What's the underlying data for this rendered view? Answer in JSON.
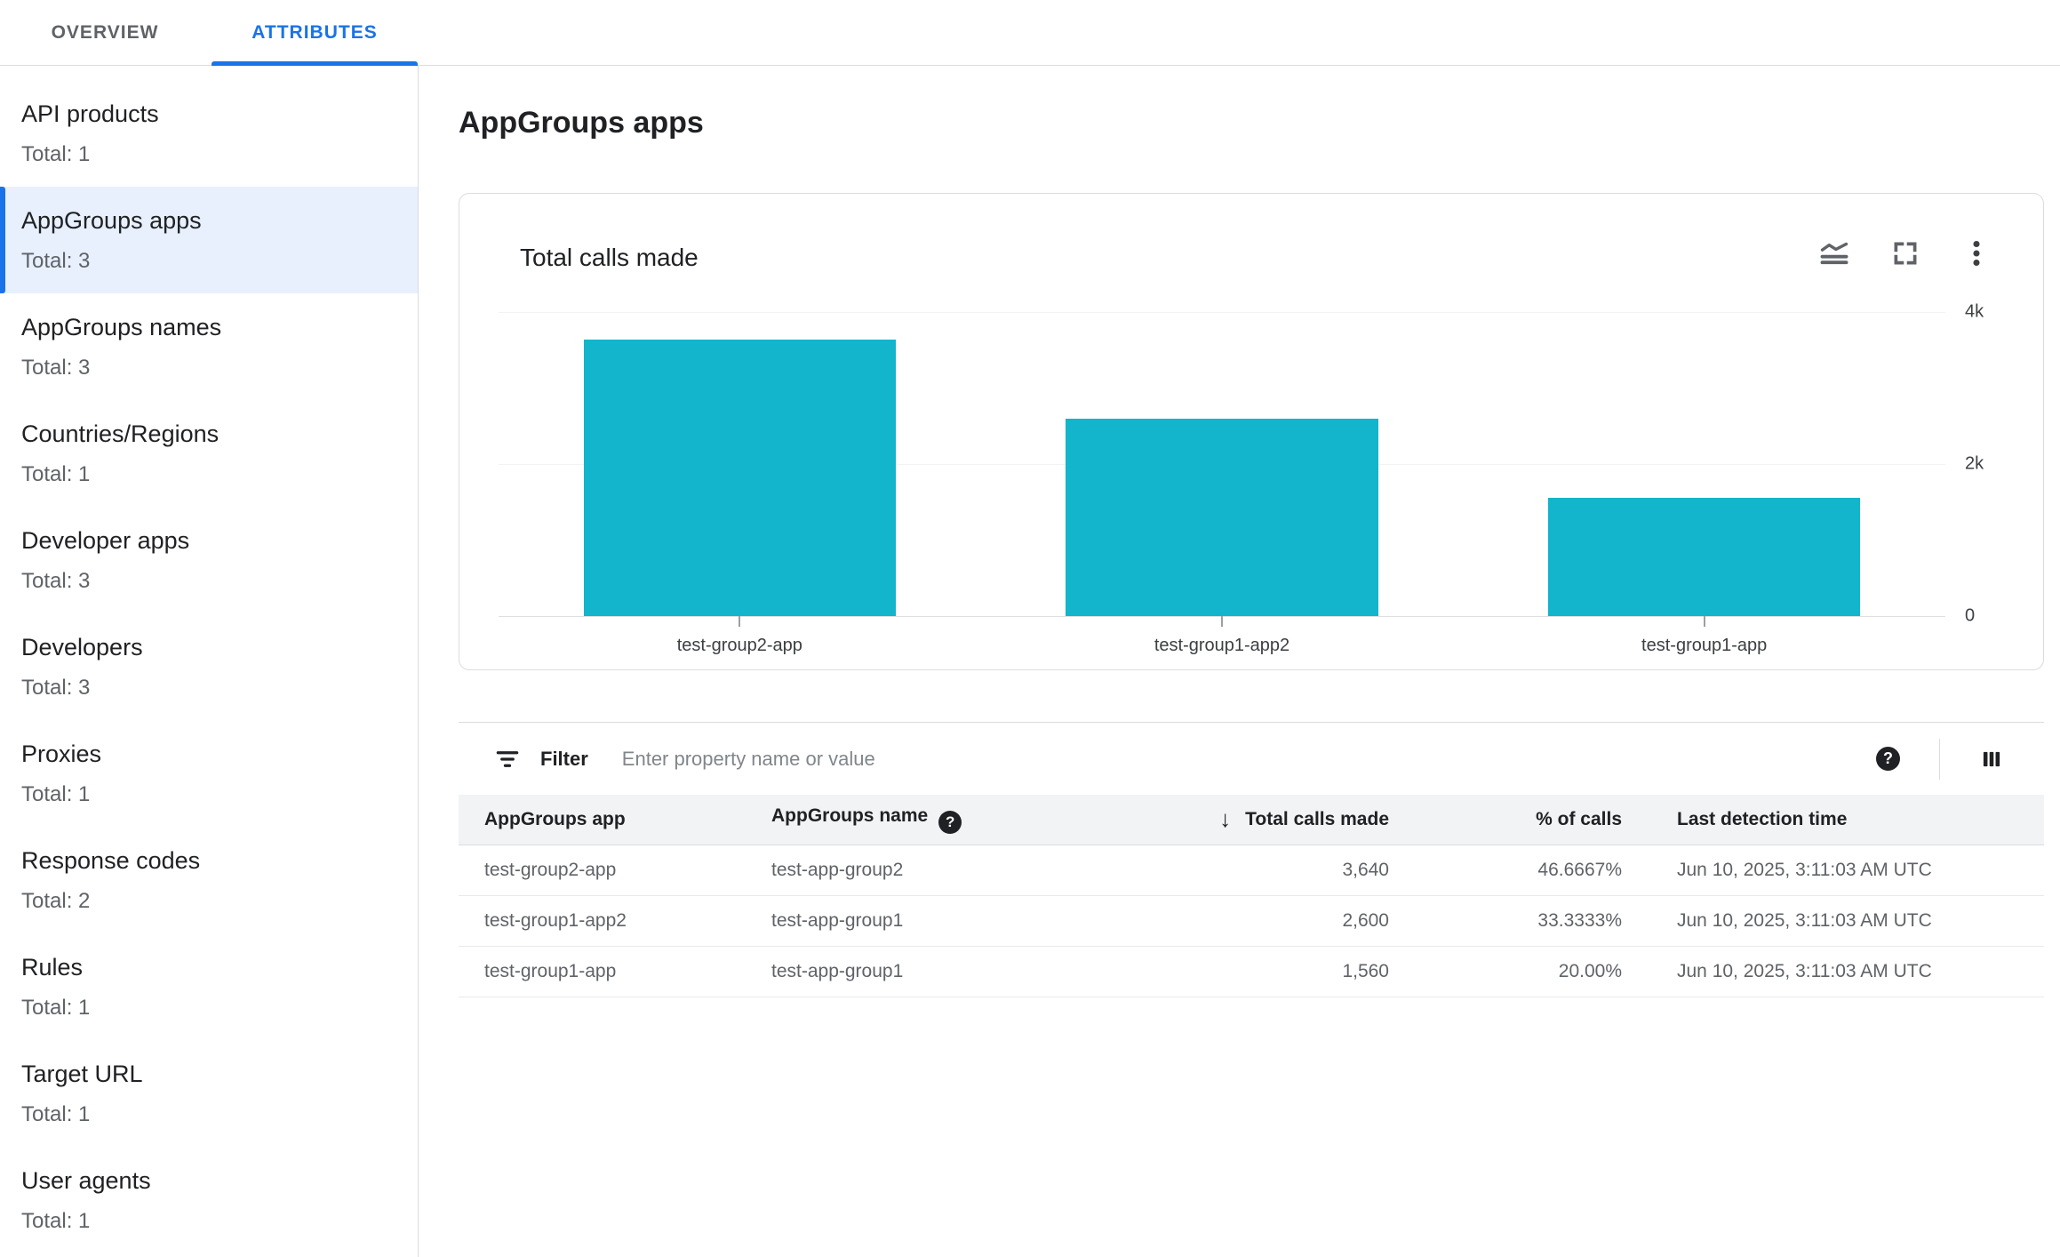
{
  "tabs": [
    {
      "label": "OVERVIEW",
      "active": false
    },
    {
      "label": "ATTRIBUTES",
      "active": true
    }
  ],
  "sidebar": {
    "items": [
      {
        "label": "API products",
        "total": "Total: 1",
        "selected": false
      },
      {
        "label": "AppGroups apps",
        "total": "Total: 3",
        "selected": true
      },
      {
        "label": "AppGroups names",
        "total": "Total: 3",
        "selected": false
      },
      {
        "label": "Countries/Regions",
        "total": "Total: 1",
        "selected": false
      },
      {
        "label": "Developer apps",
        "total": "Total: 3",
        "selected": false
      },
      {
        "label": "Developers",
        "total": "Total: 3",
        "selected": false
      },
      {
        "label": "Proxies",
        "total": "Total: 1",
        "selected": false
      },
      {
        "label": "Response codes",
        "total": "Total: 2",
        "selected": false
      },
      {
        "label": "Rules",
        "total": "Total: 1",
        "selected": false
      },
      {
        "label": "Target URL",
        "total": "Total: 1",
        "selected": false
      },
      {
        "label": "User agents",
        "total": "Total: 1",
        "selected": false
      }
    ]
  },
  "main": {
    "title": "AppGroups apps"
  },
  "chart_card": {
    "title": "Total calls made",
    "icons": [
      "stacked-line-chart-icon",
      "fullscreen-icon",
      "more-vert-icon"
    ]
  },
  "chart_data": {
    "type": "bar",
    "categories": [
      "test-group2-app",
      "test-group1-app2",
      "test-group1-app"
    ],
    "values": [
      3640,
      2600,
      1560
    ],
    "title": "Total calls made",
    "xlabel": "",
    "ylabel": "",
    "ylim": [
      0,
      4000
    ],
    "yticks": [
      {
        "label": "4k",
        "value": 4000
      },
      {
        "label": "2k",
        "value": 2000
      },
      {
        "label": "0",
        "value": 0
      }
    ],
    "grid": true,
    "legend": false,
    "axis_side": "right",
    "bar_color": "#12B5CB"
  },
  "filter": {
    "label": "Filter",
    "placeholder": "Enter property name or value"
  },
  "table": {
    "headers": {
      "app": "AppGroups app",
      "name": "AppGroups name",
      "calls": "Total calls made",
      "pct": "% of calls",
      "time": "Last detection time"
    },
    "sort_icon": "↓",
    "help_glyph": "?",
    "rows": [
      {
        "app": "test-group2-app",
        "name": "test-app-group2",
        "calls": "3,640",
        "pct": "46.6667%",
        "time": "Jun 10, 2025, 3:11:03 AM UTC"
      },
      {
        "app": "test-group1-app2",
        "name": "test-app-group1",
        "calls": "2,600",
        "pct": "33.3333%",
        "time": "Jun 10, 2025, 3:11:03 AM UTC"
      },
      {
        "app": "test-group1-app",
        "name": "test-app-group1",
        "calls": "1,560",
        "pct": "20.00%",
        "time": "Jun 10, 2025, 3:11:03 AM UTC"
      }
    ]
  },
  "colors": {
    "accent_blue": "#1A73E8",
    "bar_teal": "#12B5CB",
    "selected_bg": "#E8F0FE",
    "text_primary": "#202124",
    "text_secondary": "#5F6368",
    "divider": "#DADCE0",
    "table_header_bg": "#F1F3F4"
  }
}
